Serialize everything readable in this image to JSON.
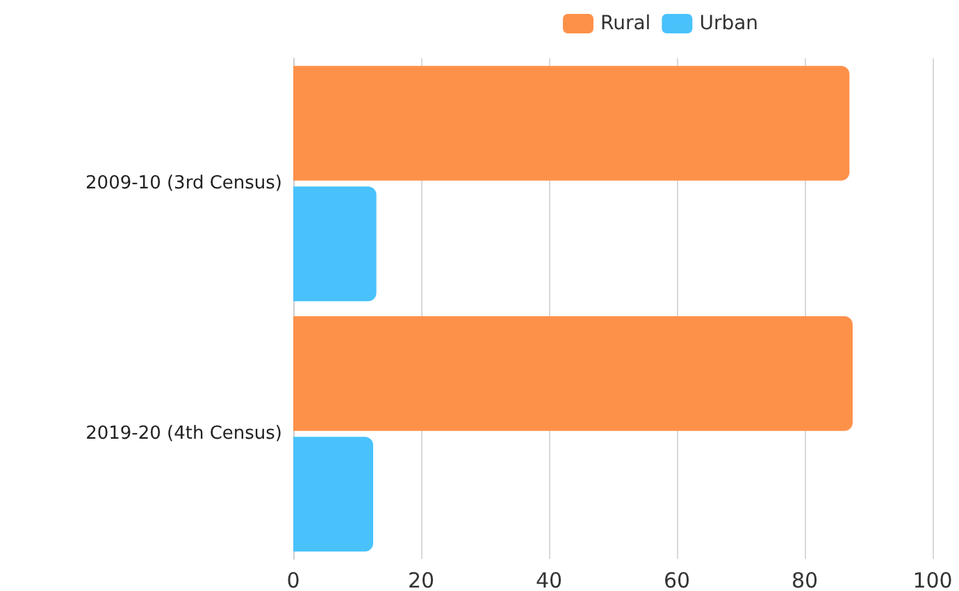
{
  "chart_data": {
    "type": "bar",
    "orientation": "horizontal",
    "categories": [
      "2009-10 (3rd Census)",
      "2019-20 (4th Census)"
    ],
    "series": [
      {
        "name": "Rural",
        "color": "#fe914a",
        "values": [
          87,
          87.5
        ]
      },
      {
        "name": "Urban",
        "color": "#49c2fc",
        "values": [
          13,
          12.5
        ]
      }
    ],
    "xlim": [
      0,
      100
    ],
    "xticks": [
      0,
      20,
      40,
      60,
      80,
      100
    ],
    "grid": "x",
    "legend": "top"
  }
}
